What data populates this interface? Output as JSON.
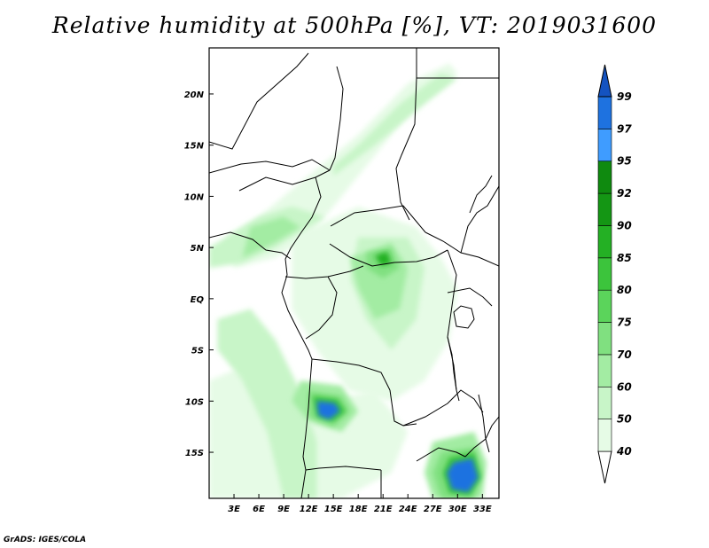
{
  "title": "Relative humidity at 500hPa [%], VT: 2019031600",
  "credit": "GrADS: IGES/COLA",
  "map": {
    "lon_range": [
      0,
      35
    ],
    "lat_range": [
      -19.5,
      24.5
    ],
    "lon_ticks": [
      {
        "value": 3,
        "label": "3E"
      },
      {
        "value": 6,
        "label": "6E"
      },
      {
        "value": 9,
        "label": "9E"
      },
      {
        "value": 12,
        "label": "12E"
      },
      {
        "value": 15,
        "label": "15E"
      },
      {
        "value": 18,
        "label": "18E"
      },
      {
        "value": 21,
        "label": "21E"
      },
      {
        "value": 24,
        "label": "24E"
      },
      {
        "value": 27,
        "label": "27E"
      },
      {
        "value": 30,
        "label": "30E"
      },
      {
        "value": 33,
        "label": "33E"
      }
    ],
    "lat_ticks": [
      {
        "value": 20,
        "label": "20N"
      },
      {
        "value": 15,
        "label": "15N"
      },
      {
        "value": 10,
        "label": "10N"
      },
      {
        "value": 5,
        "label": "5N"
      },
      {
        "value": 0,
        "label": "EQ"
      },
      {
        "value": -5,
        "label": "5S"
      },
      {
        "value": -10,
        "label": "10S"
      },
      {
        "value": -15,
        "label": "15S"
      }
    ],
    "humid_regions": [
      {
        "level": 40,
        "points": [
          [
            0,
            -8
          ],
          [
            3,
            -7
          ],
          [
            7,
            -9
          ],
          [
            10,
            -15
          ],
          [
            12,
            -19.5
          ],
          [
            0,
            -19.5
          ]
        ]
      },
      {
        "level": 40,
        "points": [
          [
            3,
            3
          ],
          [
            8,
            4
          ],
          [
            12,
            6
          ],
          [
            16,
            10
          ],
          [
            20,
            14
          ],
          [
            25,
            19
          ],
          [
            30,
            22
          ],
          [
            29,
            23
          ],
          [
            24,
            21
          ],
          [
            18,
            16
          ],
          [
            12,
            12
          ],
          [
            6,
            8
          ],
          [
            2,
            6
          ]
        ]
      },
      {
        "level": 40,
        "points": [
          [
            10,
            6
          ],
          [
            18,
            9
          ],
          [
            25,
            7
          ],
          [
            28,
            4
          ],
          [
            30,
            1
          ],
          [
            29,
            -4
          ],
          [
            26,
            -8
          ],
          [
            22,
            -10
          ],
          [
            17,
            -9
          ],
          [
            13,
            -5
          ],
          [
            10,
            -1
          ]
        ]
      },
      {
        "level": 40,
        "points": [
          [
            14,
            -10
          ],
          [
            20,
            -9
          ],
          [
            24,
            -13
          ],
          [
            22,
            -17
          ],
          [
            16,
            -19.5
          ],
          [
            11,
            -19.5
          ],
          [
            11,
            -14
          ]
        ]
      },
      {
        "level": 50,
        "points": [
          [
            0,
            3
          ],
          [
            4,
            3.5
          ],
          [
            8,
            5
          ],
          [
            12,
            7
          ],
          [
            14,
            8
          ],
          [
            10,
            9
          ],
          [
            6,
            8
          ],
          [
            2,
            6
          ],
          [
            0,
            5
          ]
        ]
      },
      {
        "level": 50,
        "points": [
          [
            1,
            -2
          ],
          [
            5,
            -1
          ],
          [
            8,
            -4
          ],
          [
            11,
            -9
          ],
          [
            13,
            -14
          ],
          [
            13,
            -19.5
          ],
          [
            9,
            -19.5
          ],
          [
            7,
            -13
          ],
          [
            4,
            -8
          ],
          [
            1,
            -5
          ]
        ]
      },
      {
        "level": 50,
        "points": [
          [
            15,
            12
          ],
          [
            20,
            15
          ],
          [
            26,
            19
          ],
          [
            30,
            21.5
          ],
          [
            28,
            22
          ],
          [
            23,
            19
          ],
          [
            18,
            15
          ],
          [
            15,
            13
          ]
        ]
      },
      {
        "level": 50,
        "points": [
          [
            18,
            6
          ],
          [
            24,
            6
          ],
          [
            26,
            3
          ],
          [
            25,
            -2
          ],
          [
            22,
            -5
          ],
          [
            19,
            -2
          ],
          [
            17,
            2
          ]
        ]
      },
      {
        "level": 60,
        "points": [
          [
            4,
            4
          ],
          [
            8,
            5.5
          ],
          [
            11,
            7
          ],
          [
            9,
            8
          ],
          [
            5,
            7
          ]
        ]
      },
      {
        "level": 60,
        "points": [
          [
            17,
            4
          ],
          [
            22,
            5.5
          ],
          [
            24,
            3
          ],
          [
            23,
            -1
          ],
          [
            20,
            -2
          ],
          [
            18,
            1
          ]
        ]
      },
      {
        "level": 60,
        "points": [
          [
            11,
            -8
          ],
          [
            16,
            -8.5
          ],
          [
            18,
            -11
          ],
          [
            16,
            -13
          ],
          [
            12,
            -12
          ],
          [
            10,
            -10
          ]
        ]
      },
      {
        "level": 60,
        "points": [
          [
            27,
            -14
          ],
          [
            32,
            -13
          ],
          [
            33.5,
            -16
          ],
          [
            33,
            -19.5
          ],
          [
            27,
            -19.5
          ],
          [
            26,
            -17
          ]
        ]
      },
      {
        "level": 70,
        "points": [
          [
            19,
            4.5
          ],
          [
            22,
            5
          ],
          [
            23,
            3
          ],
          [
            21,
            2
          ],
          [
            19,
            3
          ]
        ]
      },
      {
        "level": 70,
        "points": [
          [
            12,
            -9
          ],
          [
            16,
            -9.5
          ],
          [
            17,
            -11
          ],
          [
            15,
            -12.5
          ],
          [
            12,
            -11.5
          ]
        ]
      },
      {
        "level": 70,
        "points": [
          [
            28,
            -15
          ],
          [
            32,
            -14.5
          ],
          [
            33,
            -17
          ],
          [
            32,
            -19.5
          ],
          [
            28,
            -19.5
          ],
          [
            27,
            -17
          ]
        ]
      },
      {
        "level": 80,
        "points": [
          [
            12.5,
            -9.5
          ],
          [
            15.5,
            -9.8
          ],
          [
            16.5,
            -11
          ],
          [
            15,
            -12
          ],
          [
            13,
            -11.5
          ]
        ]
      },
      {
        "level": 80,
        "points": [
          [
            29,
            -15.5
          ],
          [
            32,
            -15
          ],
          [
            32.8,
            -17.5
          ],
          [
            31.5,
            -19.2
          ],
          [
            29,
            -19
          ],
          [
            28.2,
            -17
          ]
        ]
      },
      {
        "level": 85,
        "points": [
          [
            20,
            4.2
          ],
          [
            21.5,
            4.6
          ],
          [
            22,
            3.5
          ],
          [
            20.8,
            3.2
          ]
        ]
      },
      {
        "level": 97,
        "points": [
          [
            13,
            -10
          ],
          [
            15.2,
            -10.2
          ],
          [
            15.8,
            -11
          ],
          [
            14.5,
            -11.8
          ],
          [
            13.2,
            -11.4
          ]
        ]
      },
      {
        "level": 97,
        "points": [
          [
            29.5,
            -16
          ],
          [
            31.8,
            -15.6
          ],
          [
            32.5,
            -17.5
          ],
          [
            31.3,
            -18.9
          ],
          [
            29.3,
            -18.6
          ],
          [
            28.7,
            -17
          ]
        ]
      }
    ],
    "colorbar": {
      "levels": [
        40,
        50,
        60,
        70,
        75,
        80,
        85,
        90,
        92,
        95,
        97,
        99
      ],
      "labels": [
        "40",
        "50",
        "60",
        "70",
        "75",
        "80",
        "85",
        "90",
        "92",
        "95",
        "97",
        "99"
      ],
      "colors": [
        "#ffffff",
        "#e6fbe6",
        "#c8f5c8",
        "#a3eca3",
        "#80e080",
        "#5bd45b",
        "#3cc43c",
        "#24b024",
        "#149614",
        "#0f8a0f",
        "#3f9cff",
        "#1e72e0",
        "#1453c0"
      ]
    }
  }
}
